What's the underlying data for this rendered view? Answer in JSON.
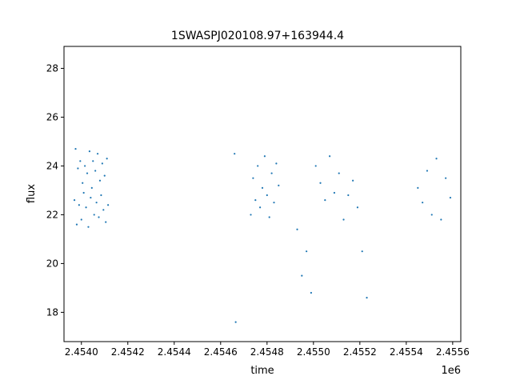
{
  "chart_data": {
    "type": "scatter",
    "title": "1SWASPJ020108.97+163944.4",
    "xlabel": "time",
    "ylabel": "flux",
    "x_offset_label": "1e6",
    "xlim": [
      2453925,
      2455635
    ],
    "ylim": [
      16.8,
      28.9
    ],
    "x_ticks": [
      2454000,
      2454200,
      2454400,
      2454600,
      2454800,
      2455000,
      2455200,
      2455400,
      2455600
    ],
    "x_tick_labels": [
      "2.4540",
      "2.4542",
      "2.4544",
      "2.4546",
      "2.4548",
      "2.4550",
      "2.4552",
      "2.4554",
      "2.4556"
    ],
    "y_ticks": [
      18,
      20,
      22,
      24,
      26,
      28
    ],
    "y_tick_labels": [
      "18",
      "20",
      "22",
      "24",
      "26",
      "28"
    ],
    "grid": false,
    "marker_color": "#1f77b4",
    "series": [
      {
        "x": [
          2453970,
          2453975,
          2453980,
          2453985,
          2453990,
          2453995,
          2454000,
          2454005,
          2454010,
          2454015,
          2454020,
          2454025,
          2454030,
          2454035,
          2454040,
          2454045,
          2454050,
          2454055,
          2454060,
          2454065,
          2454070,
          2454075,
          2454080,
          2454085,
          2454090,
          2454095,
          2454100,
          2454105,
          2454110,
          2454115,
          2454660,
          2454665,
          2454730,
          2454740,
          2454750,
          2454760,
          2454770,
          2454780,
          2454790,
          2454800,
          2454810,
          2454820,
          2454830,
          2454840,
          2454850,
          2454930,
          2454950,
          2454970,
          2454990,
          2455010,
          2455030,
          2455050,
          2455070,
          2455090,
          2455110,
          2455130,
          2455150,
          2455170,
          2455190,
          2455210,
          2455230,
          2455450,
          2455470,
          2455490,
          2455510,
          2455530,
          2455550,
          2455570,
          2455590
        ],
        "y": [
          22.6,
          24.7,
          21.6,
          23.9,
          22.4,
          24.2,
          21.8,
          23.3,
          22.9,
          24.0,
          22.3,
          23.7,
          21.5,
          24.6,
          22.7,
          23.1,
          24.2,
          22.0,
          23.8,
          22.5,
          24.5,
          21.9,
          23.4,
          22.8,
          24.1,
          22.2,
          23.6,
          21.7,
          24.3,
          22.4,
          24.5,
          17.6,
          22.0,
          23.5,
          22.6,
          24.0,
          22.3,
          23.1,
          24.4,
          22.8,
          21.9,
          23.7,
          22.5,
          24.1,
          23.2,
          21.4,
          19.5,
          20.5,
          18.8,
          24.0,
          23.3,
          22.6,
          24.4,
          22.9,
          23.7,
          21.8,
          22.8,
          23.4,
          22.3,
          20.5,
          18.6,
          23.1,
          22.5,
          23.8,
          22.0,
          24.3,
          21.8,
          23.5,
          22.7
        ]
      }
    ]
  }
}
